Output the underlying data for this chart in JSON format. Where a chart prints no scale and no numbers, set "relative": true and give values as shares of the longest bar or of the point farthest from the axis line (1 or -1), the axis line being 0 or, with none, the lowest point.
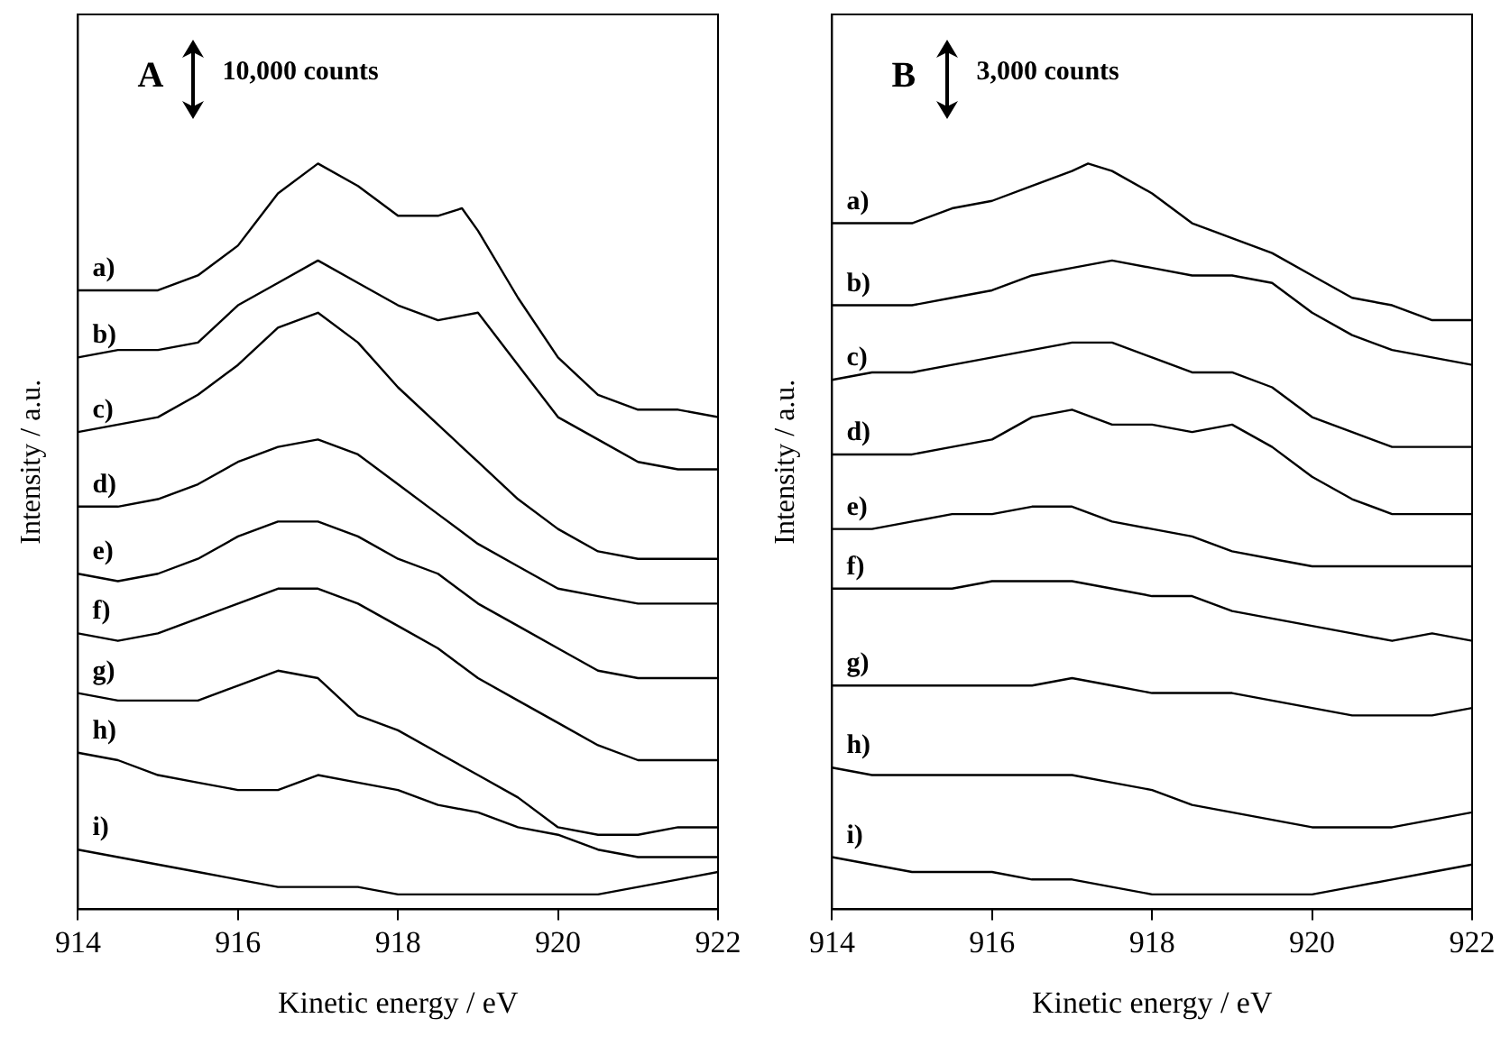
{
  "chart_data": [
    {
      "type": "line",
      "xlabel": "Kinetic energy / eV",
      "ylabel": "Intensity / a.u.",
      "annotations": [
        "A",
        "10,000 counts"
      ],
      "relative": true,
      "xlim": [
        914,
        922
      ],
      "xticks": [
        914,
        916,
        918,
        920,
        922
      ],
      "grid": false,
      "x": [
        914,
        914.5,
        915,
        915.5,
        916,
        916.5,
        917,
        917.5,
        918,
        918.5,
        919,
        919.5,
        920,
        920.5,
        921,
        921.5,
        922
      ],
      "series": [
        {
          "name": "a)",
          "color": "#000000",
          "x": [
            914,
            914.5,
            915,
            915.5,
            916,
            916.5,
            917,
            917.5,
            918,
            918.5,
            918.8,
            919,
            919.5,
            920,
            920.5,
            921,
            921.5,
            922
          ],
          "values": [
            0.83,
            0.83,
            0.83,
            0.85,
            0.89,
            0.96,
            1.0,
            0.97,
            0.93,
            0.93,
            0.94,
            0.91,
            0.82,
            0.74,
            0.69,
            0.67,
            0.67,
            0.66
          ]
        },
        {
          "name": "b)",
          "color": "#000000",
          "values": [
            0.74,
            0.75,
            0.75,
            0.76,
            0.81,
            0.84,
            0.87,
            0.84,
            0.81,
            0.79,
            0.8,
            0.73,
            0.66,
            0.63,
            0.6,
            0.59,
            0.59
          ]
        },
        {
          "name": "c)",
          "color": "#000000",
          "values": [
            0.64,
            0.65,
            0.66,
            0.69,
            0.73,
            0.78,
            0.8,
            0.76,
            0.7,
            0.65,
            0.6,
            0.55,
            0.51,
            0.48,
            0.47,
            0.47,
            0.47
          ]
        },
        {
          "name": "d)",
          "color": "#000000",
          "values": [
            0.54,
            0.54,
            0.55,
            0.57,
            0.6,
            0.62,
            0.63,
            0.61,
            0.57,
            0.53,
            0.49,
            0.46,
            0.43,
            0.42,
            0.41,
            0.41,
            0.41
          ]
        },
        {
          "name": "e)",
          "color": "#000000",
          "values": [
            0.45,
            0.44,
            0.45,
            0.47,
            0.5,
            0.52,
            0.52,
            0.5,
            0.47,
            0.45,
            0.41,
            0.38,
            0.35,
            0.32,
            0.31,
            0.31,
            0.31
          ]
        },
        {
          "name": "f)",
          "color": "#000000",
          "values": [
            0.37,
            0.36,
            0.37,
            0.39,
            0.41,
            0.43,
            0.43,
            0.41,
            0.38,
            0.35,
            0.31,
            0.28,
            0.25,
            0.22,
            0.2,
            0.2,
            0.2
          ]
        },
        {
          "name": "g)",
          "color": "#000000",
          "values": [
            0.29,
            0.28,
            0.28,
            0.28,
            0.3,
            0.32,
            0.31,
            0.26,
            0.24,
            0.21,
            0.18,
            0.15,
            0.11,
            0.1,
            0.1,
            0.11,
            0.11
          ]
        },
        {
          "name": "h)",
          "color": "#000000",
          "values": [
            0.21,
            0.2,
            0.18,
            0.17,
            0.16,
            0.16,
            0.18,
            0.17,
            0.16,
            0.14,
            0.13,
            0.11,
            0.1,
            0.08,
            0.07,
            0.07,
            0.07
          ]
        },
        {
          "name": "i)",
          "color": "#000000",
          "values": [
            0.08,
            0.07,
            0.06,
            0.05,
            0.04,
            0.03,
            0.03,
            0.03,
            0.02,
            0.02,
            0.02,
            0.02,
            0.02,
            0.02,
            0.03,
            0.04,
            0.05
          ]
        }
      ]
    },
    {
      "type": "line",
      "xlabel": "Kinetic energy / eV",
      "ylabel": "Intensity / a.u.",
      "annotations": [
        "B",
        "3,000 counts"
      ],
      "relative": true,
      "xlim": [
        914,
        922
      ],
      "xticks": [
        914,
        916,
        918,
        920,
        922
      ],
      "grid": false,
      "x": [
        914,
        914.5,
        915,
        915.5,
        916,
        916.5,
        917,
        917.5,
        918,
        918.5,
        919,
        919.5,
        920,
        920.5,
        921,
        921.5,
        922
      ],
      "series": [
        {
          "name": "a)",
          "color": "#000000",
          "x": [
            914,
            914.5,
            915,
            915.5,
            916,
            916.5,
            917,
            917.2,
            917.5,
            918,
            918.5,
            919,
            919.5,
            920,
            920.5,
            921,
            921.5,
            922
          ],
          "values": [
            0.92,
            0.92,
            0.92,
            0.94,
            0.95,
            0.97,
            0.99,
            1.0,
            0.99,
            0.96,
            0.92,
            0.9,
            0.88,
            0.85,
            0.82,
            0.81,
            0.79,
            0.79
          ]
        },
        {
          "name": "b)",
          "color": "#000000",
          "values": [
            0.81,
            0.81,
            0.81,
            0.82,
            0.83,
            0.85,
            0.86,
            0.87,
            0.86,
            0.85,
            0.85,
            0.84,
            0.8,
            0.77,
            0.75,
            0.74,
            0.73
          ]
        },
        {
          "name": "c)",
          "color": "#000000",
          "values": [
            0.71,
            0.72,
            0.72,
            0.73,
            0.74,
            0.75,
            0.76,
            0.76,
            0.74,
            0.72,
            0.72,
            0.7,
            0.66,
            0.64,
            0.62,
            0.62,
            0.62
          ]
        },
        {
          "name": "d)",
          "color": "#000000",
          "values": [
            0.61,
            0.61,
            0.61,
            0.62,
            0.63,
            0.66,
            0.67,
            0.65,
            0.65,
            0.64,
            0.65,
            0.62,
            0.58,
            0.55,
            0.53,
            0.53,
            0.53
          ]
        },
        {
          "name": "e)",
          "color": "#000000",
          "values": [
            0.51,
            0.51,
            0.52,
            0.53,
            0.53,
            0.54,
            0.54,
            0.52,
            0.51,
            0.5,
            0.48,
            0.47,
            0.46,
            0.46,
            0.46,
            0.46,
            0.46
          ]
        },
        {
          "name": "f)",
          "color": "#000000",
          "values": [
            0.43,
            0.43,
            0.43,
            0.43,
            0.44,
            0.44,
            0.44,
            0.43,
            0.42,
            0.42,
            0.4,
            0.39,
            0.38,
            0.37,
            0.36,
            0.37,
            0.36
          ]
        },
        {
          "name": "g)",
          "color": "#000000",
          "values": [
            0.3,
            0.3,
            0.3,
            0.3,
            0.3,
            0.3,
            0.31,
            0.3,
            0.29,
            0.29,
            0.29,
            0.28,
            0.27,
            0.26,
            0.26,
            0.26,
            0.27
          ]
        },
        {
          "name": "h)",
          "color": "#000000",
          "values": [
            0.19,
            0.18,
            0.18,
            0.18,
            0.18,
            0.18,
            0.18,
            0.17,
            0.16,
            0.14,
            0.13,
            0.12,
            0.11,
            0.11,
            0.11,
            0.12,
            0.13
          ]
        },
        {
          "name": "i)",
          "color": "#000000",
          "values": [
            0.07,
            0.06,
            0.05,
            0.05,
            0.05,
            0.04,
            0.04,
            0.03,
            0.02,
            0.02,
            0.02,
            0.02,
            0.02,
            0.03,
            0.04,
            0.05,
            0.06
          ]
        }
      ]
    }
  ]
}
